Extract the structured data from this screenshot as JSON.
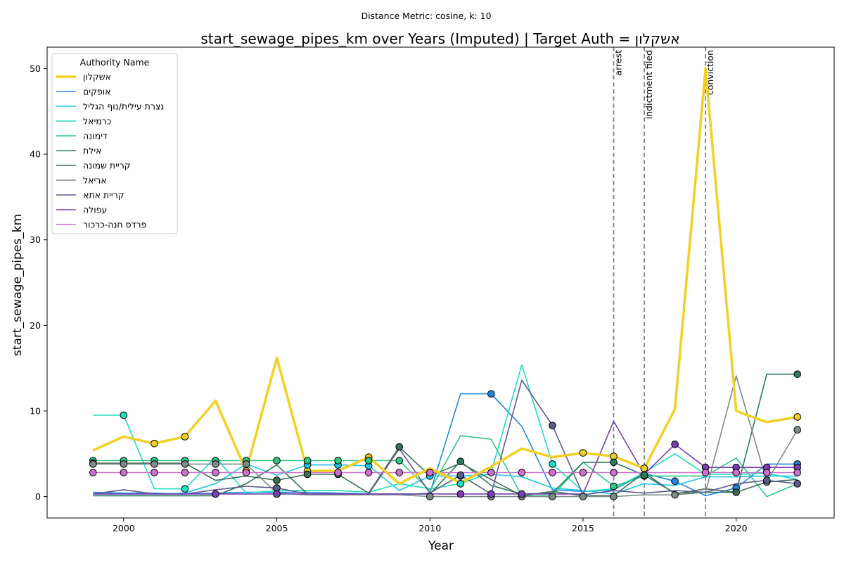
{
  "chart_data": {
    "type": "line",
    "suptitle": "Distance Metric: cosine, k: 10",
    "title": "start_sewage_pipes_km over Years (Imputed) | Target Auth = אשקלון",
    "xlabel": "Year",
    "ylabel": "start_sewage_pipes_km",
    "xlim": [
      1997.5,
      2023.2
    ],
    "ylim": [
      -2.5,
      52.5
    ],
    "xticks": [
      2000,
      2005,
      2010,
      2015,
      2020
    ],
    "yticks": [
      0,
      10,
      20,
      30,
      40,
      50
    ],
    "grid": false,
    "legend": {
      "title": "Authority Name",
      "position": "top-left"
    },
    "years": [
      1999,
      2000,
      2001,
      2002,
      2003,
      2004,
      2005,
      2006,
      2007,
      2008,
      2009,
      2010,
      2011,
      2012,
      2013,
      2014,
      2015,
      2016,
      2017,
      2018,
      2019,
      2020,
      2021,
      2022
    ],
    "events": [
      {
        "year": 2016,
        "label": "arrest"
      },
      {
        "year": 2017,
        "label": "indictment filed"
      },
      {
        "year": 2019,
        "label": "conviction"
      }
    ],
    "series": [
      {
        "name": "אשקלון",
        "color": "#f2d024",
        "width": 3.5,
        "target": true,
        "values": [
          5.4,
          7.0,
          6.2,
          7.0,
          11.2,
          3.0,
          16.2,
          3.0,
          3.0,
          4.6,
          1.5,
          3.3,
          1.6,
          3.5,
          5.6,
          4.6,
          5.1,
          4.7,
          3.3,
          10.2,
          50.0,
          10.0,
          8.7,
          9.3
        ],
        "markers": [
          2001,
          2002,
          2004,
          2006,
          2008,
          2015,
          2016,
          2017,
          2022
        ]
      },
      {
        "name": "אופקים",
        "color": "#1e88e5",
        "width": 1.6,
        "values": [
          0.5,
          0.4,
          0.4,
          0.3,
          0.4,
          0.5,
          0.5,
          0.5,
          0.4,
          0.3,
          0.2,
          0.4,
          12.0,
          12.0,
          8.2,
          0.8,
          0.6,
          0.8,
          2.7,
          1.8,
          0.1,
          1.0,
          3.8,
          3.8
        ],
        "markers": [
          2012,
          2018,
          2020,
          2022
        ]
      },
      {
        "name": "נצרת עילית/נוף הגליל",
        "color": "#22c4f0",
        "width": 1.6,
        "values": [
          0.3,
          0.3,
          0.3,
          0.4,
          1.5,
          3.8,
          2.5,
          3.7,
          3.7,
          3.6,
          0.7,
          2.4,
          2.4,
          2.6,
          2.3,
          1.0,
          0.7,
          0.3,
          1.5,
          1.3,
          2.3,
          2.3,
          2.4,
          2.4
        ],
        "markers": [
          2006,
          2007,
          2008,
          2010,
          2011
        ]
      },
      {
        "name": "כרמיאל",
        "color": "#20dec0",
        "width": 1.6,
        "values": [
          9.5,
          9.5,
          0.9,
          0.9,
          4.6,
          0.4,
          0.7,
          0.7,
          0.7,
          0.5,
          1.5,
          0.9,
          1.5,
          2.8,
          15.4,
          3.8,
          0.6,
          0.9,
          2.8,
          5.0,
          2.6,
          2.6,
          2.7,
          2.0
        ],
        "markers": [
          2000,
          2002,
          2011,
          2014
        ]
      },
      {
        "name": "דימונה",
        "color": "#2ec882",
        "width": 1.6,
        "values": [
          4.2,
          4.2,
          4.2,
          4.2,
          4.2,
          4.2,
          4.2,
          4.2,
          4.2,
          4.2,
          4.2,
          0.7,
          7.1,
          6.7,
          0.1,
          0.1,
          4.0,
          1.2,
          2.4,
          2.4,
          2.4,
          4.5,
          0.0,
          1.5
        ],
        "markers": [
          1999,
          2000,
          2001,
          2002,
          2003,
          2004,
          2005,
          2006,
          2007,
          2008,
          2009,
          2016,
          2017
        ]
      },
      {
        "name": "אילת",
        "color": "#2b7a5c",
        "width": 1.6,
        "values": [
          0.1,
          0.1,
          0.1,
          0.1,
          0.1,
          1.5,
          3.7,
          0.3,
          0.3,
          0.3,
          0.3,
          0.3,
          4.1,
          1.3,
          0.3,
          0.4,
          4.0,
          4.0,
          2.5,
          0.4,
          0.5,
          0.5,
          14.3,
          14.3
        ],
        "markers": [
          2011,
          2016,
          2017,
          2022
        ]
      },
      {
        "name": "קריית שמונה",
        "color": "#3f6d55",
        "width": 1.6,
        "values": [
          3.9,
          3.9,
          3.9,
          3.9,
          1.9,
          2.4,
          1.9,
          2.6,
          2.6,
          0.4,
          5.8,
          2.4,
          3.9,
          2.0,
          0.1,
          0.6,
          0.1,
          0.1,
          2.8,
          0.3,
          0.9,
          0.5,
          1.7,
          2.0
        ],
        "markers": [
          1999,
          2005,
          2006,
          2007,
          2009,
          2020
        ]
      },
      {
        "name": "אריאל",
        "color": "#7e8c88",
        "width": 1.6,
        "values": [
          3.8,
          3.8,
          3.8,
          3.8,
          3.8,
          3.8,
          0.4,
          0.2,
          0.2,
          0.2,
          0.2,
          0.0,
          0.0,
          0.0,
          0.0,
          0.0,
          0.0,
          0.0,
          0.2,
          0.2,
          0.5,
          14.1,
          1.7,
          7.8
        ],
        "markers": [
          1999,
          2000,
          2001,
          2002,
          2003,
          2004,
          2010,
          2012,
          2013,
          2014,
          2015,
          2016,
          2018,
          2021,
          2022
        ]
      },
      {
        "name": "קריית אתא",
        "color": "#5b5b8f",
        "width": 1.6,
        "values": [
          0.3,
          0.8,
          0.3,
          0.3,
          0.8,
          1.2,
          1.0,
          0.3,
          0.3,
          0.3,
          5.6,
          0.4,
          2.5,
          0.3,
          13.6,
          8.3,
          0.2,
          0.7,
          0.4,
          0.7,
          0.5,
          1.5,
          1.9,
          1.5
        ],
        "markers": [
          2005,
          2011,
          2014,
          2021,
          2022
        ]
      },
      {
        "name": "עפולה",
        "color": "#7b3fb3",
        "width": 1.6,
        "values": [
          0.3,
          0.3,
          0.3,
          0.3,
          0.3,
          0.3,
          0.3,
          0.3,
          0.3,
          0.3,
          0.3,
          0.3,
          0.3,
          0.3,
          0.3,
          0.3,
          0.3,
          8.8,
          2.6,
          6.1,
          3.4,
          3.4,
          3.4,
          3.4
        ],
        "markers": [
          2003,
          2005,
          2011,
          2012,
          2013,
          2018,
          2019,
          2020,
          2021,
          2022
        ]
      },
      {
        "name": "פרדס חנה-כרכור",
        "color": "#cf6fcf",
        "width": 1.6,
        "values": [
          2.8,
          2.8,
          2.8,
          2.8,
          2.8,
          2.8,
          2.8,
          2.8,
          2.8,
          2.8,
          2.8,
          2.8,
          2.8,
          2.8,
          2.8,
          2.8,
          2.8,
          2.8,
          2.8,
          2.8,
          2.8,
          2.8,
          2.8,
          2.8
        ],
        "markers": [
          1999,
          2000,
          2001,
          2002,
          2003,
          2004,
          2007,
          2008,
          2009,
          2010,
          2012,
          2013,
          2014,
          2015,
          2016,
          2019,
          2020,
          2021,
          2022
        ]
      }
    ]
  }
}
